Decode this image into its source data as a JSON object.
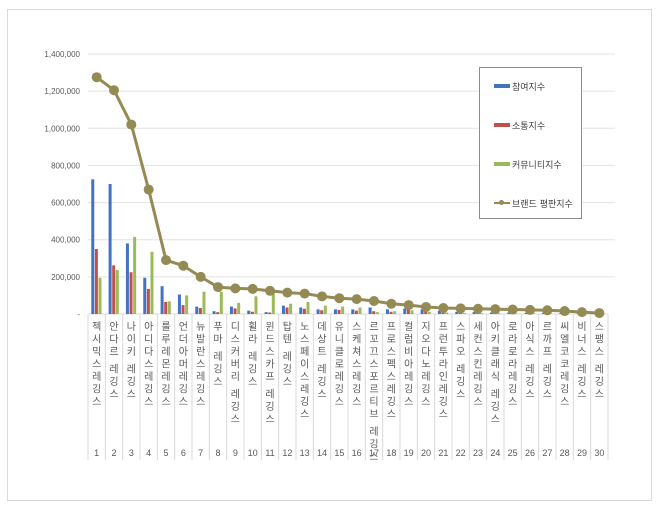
{
  "chart_data": {
    "type": "bar",
    "title": "",
    "xlabel": "",
    "ylabel": "",
    "ylim": [
      0,
      1400000
    ],
    "yticks": [
      "-",
      "200,000",
      "400,000",
      "600,000",
      "800,000",
      "1,000,000",
      "1,200,000",
      "1,400,000"
    ],
    "grid": true,
    "legend_position": "upper right (inside)",
    "categories": [
      "1",
      "2",
      "3",
      "4",
      "5",
      "6",
      "7",
      "8",
      "9",
      "10",
      "11",
      "12",
      "13",
      "14",
      "15",
      "16",
      "17",
      "18",
      "19",
      "20",
      "21",
      "22",
      "23",
      "24",
      "25",
      "26",
      "27",
      "28",
      "29",
      "30"
    ],
    "category_names": [
      "젝시믹스레깅스",
      "안다르 레깅스",
      "나이키 레깅스",
      "아디다스레깅스",
      "룰루레몬레깅스",
      "언더아머레깅스",
      "뉴발란스레깅스",
      "푸마 레깅스",
      "디스커버리 레깅스",
      "휠라 레깅스",
      "윈드스카프 레깅스",
      "탑텐 레깅스",
      "노스페이스레깅스",
      "데상트 레깅스",
      "유니클로레깅스",
      "스케쳐스레깅스",
      "르꼬끄스포르티브 레깅스",
      "프로스펙스레깅스",
      "컬럼비아레깅스",
      "지오다노레깅스",
      "프런투라인레깅스",
      "스파오 레깅스",
      "세컨스킨레깅스",
      "아키클래식 레깅스",
      "로라로라레깅스",
      "아식스 레깅스",
      "르까프 레깅스",
      "씨엘코코레깅스",
      "비너스 레깅스",
      "스팽스 레깅스"
    ],
    "series": [
      {
        "name": "참여지수",
        "type": "bar",
        "color": "#4472c4",
        "values": [
          725000,
          700000,
          380000,
          195000,
          150000,
          105000,
          40000,
          15000,
          40000,
          18000,
          10000,
          45000,
          35000,
          25000,
          25000,
          25000,
          35000,
          25000,
          30000,
          25000,
          18000,
          12000,
          10000,
          8000,
          8000,
          6000,
          6000,
          5000,
          4000,
          3000
        ]
      },
      {
        "name": "소통지수",
        "type": "bar",
        "color": "#c0504d",
        "values": [
          350000,
          262000,
          225000,
          135000,
          65000,
          48000,
          32000,
          10000,
          30000,
          12000,
          8000,
          35000,
          28000,
          20000,
          22000,
          18000,
          15000,
          12000,
          25000,
          15000,
          10000,
          8000,
          6000,
          5000,
          5000,
          4000,
          4000,
          3000,
          3000,
          2000
        ]
      },
      {
        "name": "커뮤니티지수",
        "type": "bar",
        "color": "#9bbb59",
        "values": [
          195000,
          237000,
          415000,
          335000,
          68000,
          100000,
          120000,
          120000,
          60000,
          95000,
          115000,
          55000,
          65000,
          45000,
          40000,
          35000,
          10000,
          15000,
          20000,
          12000,
          8000,
          6000,
          5000,
          5000,
          4000,
          4000,
          3000,
          3000,
          2000,
          2000
        ]
      },
      {
        "name": "브랜드 평판지수",
        "type": "line",
        "color": "#948a54",
        "values": [
          1275000,
          1205000,
          1020000,
          670000,
          290000,
          260000,
          200000,
          145000,
          138000,
          135000,
          125000,
          115000,
          110000,
          95000,
          85000,
          80000,
          70000,
          55000,
          48000,
          38000,
          32000,
          30000,
          28000,
          26000,
          24000,
          22000,
          20000,
          16000,
          10000,
          5000
        ]
      }
    ]
  }
}
